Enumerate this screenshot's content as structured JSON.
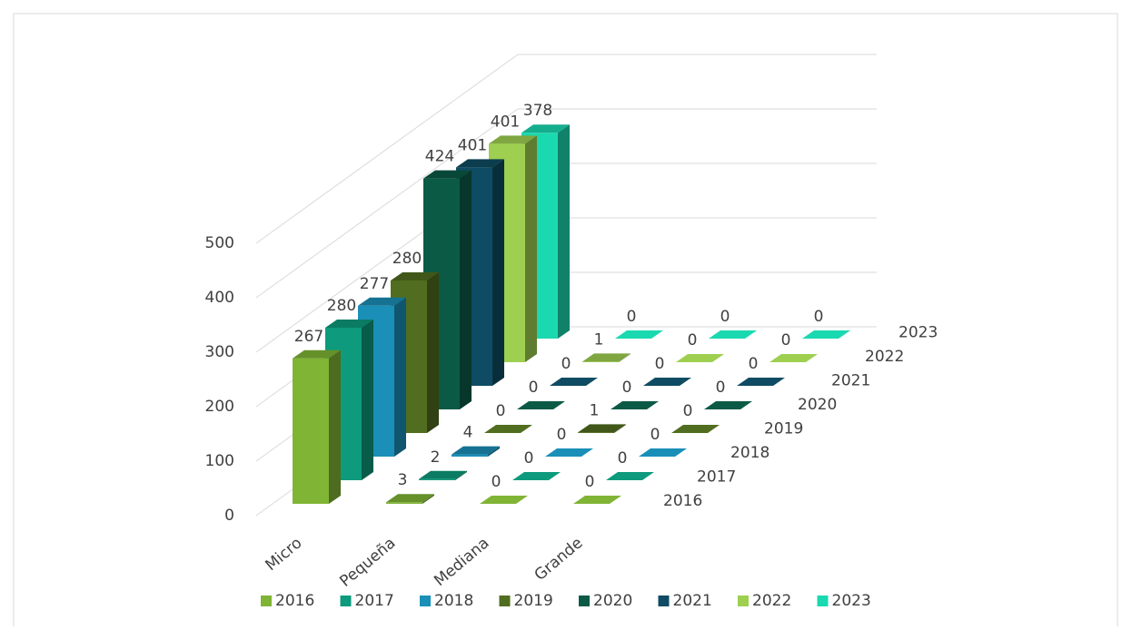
{
  "chart_data": {
    "type": "bar3d",
    "categories": [
      "Micro",
      "Pequeña",
      "Mediana",
      "Grande"
    ],
    "series": [
      {
        "name": "2016",
        "color": "#80b435",
        "values": [
          267,
          3,
          0,
          0
        ]
      },
      {
        "name": "2017",
        "color": "#0e9a7c",
        "values": [
          280,
          2,
          0,
          0
        ]
      },
      {
        "name": "2018",
        "color": "#1a8fb8",
        "values": [
          277,
          4,
          0,
          0
        ]
      },
      {
        "name": "2019",
        "color": "#516d1f",
        "values": [
          280,
          0,
          1,
          0
        ]
      },
      {
        "name": "2020",
        "color": "#0b5a46",
        "values": [
          424,
          0,
          0,
          0
        ]
      },
      {
        "name": "2021",
        "color": "#0f4c63",
        "values": [
          401,
          0,
          0,
          0
        ]
      },
      {
        "name": "2022",
        "color": "#9fcf50",
        "values": [
          401,
          1,
          0,
          0
        ]
      },
      {
        "name": "2023",
        "color": "#1ad9b0",
        "values": [
          378,
          0,
          0,
          0
        ]
      }
    ],
    "ylim": [
      0,
      500
    ],
    "yticks": [
      0,
      100,
      200,
      300,
      400,
      500
    ],
    "grid": true,
    "legend": "bottom"
  }
}
